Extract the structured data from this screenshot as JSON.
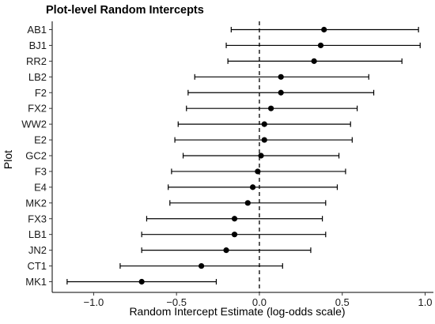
{
  "chart_data": {
    "type": "scatter",
    "title": "Plot-level Random Intercepts",
    "xlabel": "Random Intercept Estimate (log-odds scale)",
    "ylabel": "Plot",
    "xlim": [
      -1.25,
      1.05
    ],
    "xticks": [
      -1.0,
      -0.5,
      0.0,
      0.5,
      1.0
    ],
    "xtick_labels": [
      "−1.0",
      "−0.5",
      "0.0",
      "0.5",
      "1.0"
    ],
    "reference_line": {
      "x": 0,
      "style": "dashed"
    },
    "grid": false,
    "categories": [
      "AB1",
      "BJ1",
      "RR2",
      "LB2",
      "F2",
      "FX2",
      "WW2",
      "E2",
      "GC2",
      "F3",
      "E4",
      "MK2",
      "FX3",
      "LB1",
      "JN2",
      "CT1",
      "MK1"
    ],
    "estimates": [
      0.39,
      0.37,
      0.33,
      0.13,
      0.13,
      0.07,
      0.03,
      0.03,
      0.01,
      -0.01,
      -0.04,
      -0.07,
      -0.15,
      -0.15,
      -0.2,
      -0.35,
      -0.71
    ],
    "lower": [
      -0.17,
      -0.2,
      -0.19,
      -0.39,
      -0.43,
      -0.44,
      -0.49,
      -0.51,
      -0.46,
      -0.53,
      -0.55,
      -0.54,
      -0.68,
      -0.71,
      -0.71,
      -0.84,
      -1.16
    ],
    "upper": [
      0.96,
      0.97,
      0.86,
      0.66,
      0.69,
      0.59,
      0.55,
      0.56,
      0.48,
      0.52,
      0.47,
      0.4,
      0.38,
      0.4,
      0.31,
      0.14,
      -0.26
    ]
  }
}
